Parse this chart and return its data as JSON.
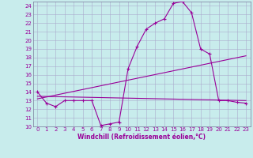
{
  "xlabel": "Windchill (Refroidissement éolien,°C)",
  "background_color": "#c8ecec",
  "line_color": "#990099",
  "grid_color": "#aaaacc",
  "spine_color": "#777799",
  "xlim": [
    -0.5,
    23.5
  ],
  "ylim": [
    10,
    24.5
  ],
  "yticks": [
    10,
    11,
    12,
    13,
    14,
    15,
    16,
    17,
    18,
    19,
    20,
    21,
    22,
    23,
    24
  ],
  "xticks": [
    0,
    1,
    2,
    3,
    4,
    5,
    6,
    7,
    8,
    9,
    10,
    11,
    12,
    13,
    14,
    15,
    16,
    17,
    18,
    19,
    20,
    21,
    22,
    23
  ],
  "curve1_x": [
    0,
    1,
    2,
    3,
    4,
    5,
    6,
    7,
    8,
    9,
    10,
    11,
    12,
    13,
    14,
    15,
    16,
    17,
    18,
    19,
    20,
    21,
    22,
    23
  ],
  "curve1_y": [
    14.0,
    12.7,
    12.3,
    13.0,
    13.0,
    13.0,
    13.0,
    10.1,
    10.3,
    10.5,
    16.7,
    19.3,
    21.3,
    22.0,
    22.5,
    24.3,
    24.5,
    23.2,
    19.0,
    18.4,
    13.0,
    13.0,
    12.8,
    12.7
  ],
  "line1_x": [
    0,
    23
  ],
  "line1_y": [
    13.5,
    13.0
  ],
  "line2_x": [
    0,
    23
  ],
  "line2_y": [
    13.2,
    18.2
  ],
  "xlabel_fontsize": 5.5,
  "tick_fontsize": 5,
  "figwidth": 3.2,
  "figheight": 2.0,
  "dpi": 100
}
